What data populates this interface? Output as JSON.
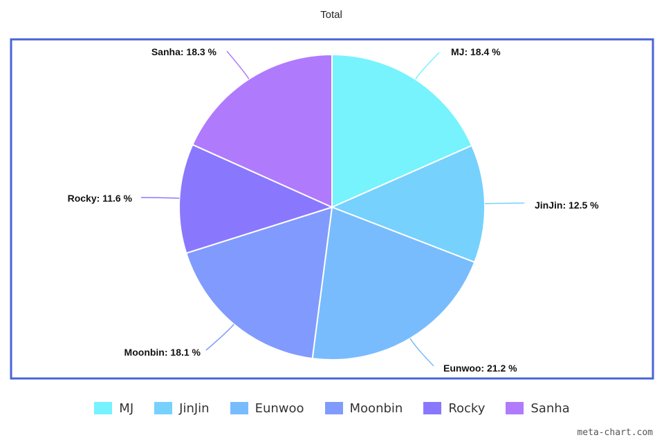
{
  "chart_data": {
    "type": "pie",
    "title": "Total",
    "categories": [
      "MJ",
      "JinJin",
      "Eunwoo",
      "Moonbin",
      "Rocky",
      "Sanha"
    ],
    "values": [
      18.4,
      12.5,
      21.2,
      18.1,
      11.6,
      18.3
    ],
    "slice_labels": [
      "MJ: 18.4 %",
      "JinJin: 12.5 %",
      "Eunwoo: 21.2 %",
      "Moonbin: 18.1 %",
      "Rocky: 11.6 %",
      "Sanha: 18.3 %"
    ],
    "colors": [
      "#76f3fd",
      "#76d1fd",
      "#78bcfd",
      "#809bfd",
      "#8978fd",
      "#b07afd"
    ],
    "legend_position": "bottom",
    "plot_border_color": "#4863d8"
  },
  "watermark": "meta-chart.com"
}
